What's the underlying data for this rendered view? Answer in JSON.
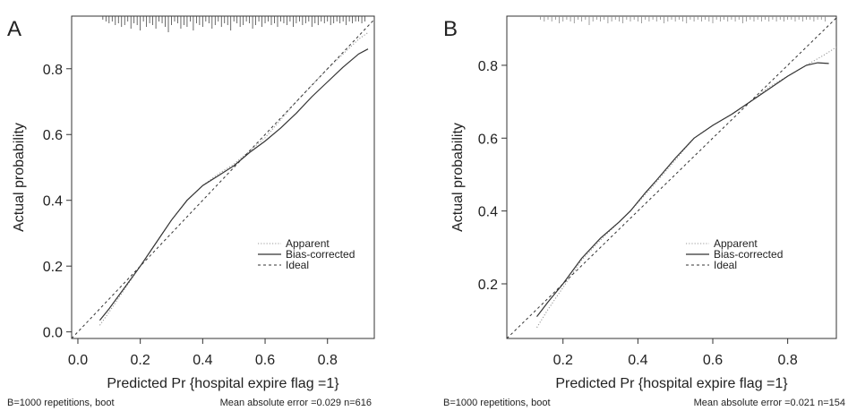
{
  "chart_data": [
    {
      "panel_label": "A",
      "type": "line",
      "xlabel": "Predicted Pr {hospital expire flag =1}",
      "ylabel": "Actual probability",
      "xlim": [
        -0.02,
        0.95
      ],
      "ylim": [
        -0.02,
        0.96
      ],
      "xticks": [
        "0.0",
        "0.2",
        "0.4",
        "0.6",
        "0.8"
      ],
      "xtick_values": [
        0,
        0.2,
        0.4,
        0.6,
        0.8
      ],
      "yticks": [
        "0.0",
        "0.2",
        "0.4",
        "0.6",
        "0.8"
      ],
      "ytick_values": [
        0,
        0.2,
        0.4,
        0.6,
        0.8
      ],
      "legend": [
        "Apparent",
        "Bias-corrected",
        "Ideal"
      ],
      "legend_placement": "bottom-right",
      "grid": false,
      "series": [
        {
          "name": "Apparent",
          "style": "dotted",
          "x": [
            0.07,
            0.1,
            0.15,
            0.2,
            0.25,
            0.3,
            0.35,
            0.4,
            0.45,
            0.5,
            0.55,
            0.6,
            0.65,
            0.7,
            0.75,
            0.8,
            0.85,
            0.9,
            0.93
          ],
          "y": [
            0.02,
            0.06,
            0.13,
            0.2,
            0.27,
            0.34,
            0.4,
            0.445,
            0.48,
            0.51,
            0.55,
            0.59,
            0.645,
            0.7,
            0.75,
            0.8,
            0.845,
            0.89,
            0.91
          ]
        },
        {
          "name": "Bias-corrected",
          "style": "solid",
          "x": [
            0.07,
            0.1,
            0.15,
            0.2,
            0.25,
            0.3,
            0.35,
            0.4,
            0.45,
            0.5,
            0.55,
            0.6,
            0.65,
            0.7,
            0.75,
            0.8,
            0.85,
            0.9,
            0.93
          ],
          "y": [
            0.035,
            0.07,
            0.135,
            0.2,
            0.27,
            0.34,
            0.4,
            0.445,
            0.475,
            0.505,
            0.545,
            0.58,
            0.62,
            0.665,
            0.715,
            0.76,
            0.805,
            0.845,
            0.86
          ]
        },
        {
          "name": "Ideal",
          "style": "dashed",
          "x": [
            -0.02,
            0.95
          ],
          "y": [
            -0.02,
            0.95
          ]
        }
      ],
      "rug_x": [
        0.08,
        0.09,
        0.1,
        0.11,
        0.12,
        0.13,
        0.14,
        0.15,
        0.16,
        0.17,
        0.18,
        0.19,
        0.2,
        0.21,
        0.22,
        0.23,
        0.24,
        0.25,
        0.26,
        0.27,
        0.28,
        0.29,
        0.3,
        0.31,
        0.32,
        0.33,
        0.34,
        0.35,
        0.36,
        0.37,
        0.38,
        0.39,
        0.4,
        0.41,
        0.42,
        0.43,
        0.44,
        0.45,
        0.46,
        0.47,
        0.48,
        0.49,
        0.5,
        0.51,
        0.52,
        0.53,
        0.54,
        0.55,
        0.56,
        0.57,
        0.58,
        0.59,
        0.6,
        0.61,
        0.62,
        0.63,
        0.64,
        0.65,
        0.66,
        0.67,
        0.68,
        0.69,
        0.7,
        0.71,
        0.72,
        0.73,
        0.74,
        0.75,
        0.76,
        0.77,
        0.78,
        0.79,
        0.8,
        0.81,
        0.82,
        0.83,
        0.84,
        0.85,
        0.86,
        0.87,
        0.88,
        0.89,
        0.9,
        0.91,
        0.92
      ],
      "rug_len": [
        2,
        3,
        4,
        3,
        5,
        4,
        6,
        5,
        3,
        7,
        4,
        5,
        8,
        3,
        6,
        4,
        5,
        7,
        3,
        4,
        6,
        9,
        5,
        3,
        4,
        7,
        5,
        6,
        3,
        8,
        4,
        5,
        6,
        3,
        4,
        7,
        5,
        3,
        6,
        4,
        5,
        8,
        3,
        4,
        6,
        5,
        3,
        4,
        7,
        5,
        3,
        6,
        4,
        3,
        5,
        4,
        6,
        3,
        4,
        5,
        3,
        6,
        4,
        3,
        5,
        4,
        3,
        6,
        4,
        5,
        3,
        4,
        3,
        5,
        4,
        3,
        4,
        3,
        5,
        3,
        4,
        3,
        3,
        4,
        3
      ],
      "footer_left": "B=1000 repetitions, boot",
      "footer_right": "Mean absolute error =0.029 n=616"
    },
    {
      "panel_label": "B",
      "type": "line",
      "xlabel": "Predicted Pr {hospital expire flag =1}",
      "ylabel": "Actual probability",
      "xlim": [
        0.05,
        0.93
      ],
      "ylim": [
        0.05,
        0.935
      ],
      "xticks": [
        "0.2",
        "0.4",
        "0.6",
        "0.8"
      ],
      "xtick_values": [
        0.2,
        0.4,
        0.6,
        0.8
      ],
      "yticks": [
        "0.2",
        "0.4",
        "0.6",
        "0.8"
      ],
      "ytick_values": [
        0.2,
        0.4,
        0.6,
        0.8
      ],
      "legend": [
        "Apparent",
        "Bias-corrected",
        "Ideal"
      ],
      "legend_placement": "bottom-right",
      "grid": false,
      "series": [
        {
          "name": "Apparent",
          "style": "dotted",
          "x": [
            0.13,
            0.16,
            0.2,
            0.25,
            0.3,
            0.35,
            0.38,
            0.42,
            0.45,
            0.5,
            0.55,
            0.6,
            0.65,
            0.7,
            0.75,
            0.8,
            0.85,
            0.9,
            0.93
          ],
          "y": [
            0.08,
            0.13,
            0.19,
            0.265,
            0.32,
            0.37,
            0.4,
            0.445,
            0.48,
            0.54,
            0.6,
            0.635,
            0.665,
            0.7,
            0.74,
            0.77,
            0.8,
            0.83,
            0.85
          ]
        },
        {
          "name": "Bias-corrected",
          "style": "solid",
          "x": [
            0.13,
            0.16,
            0.2,
            0.25,
            0.3,
            0.35,
            0.38,
            0.42,
            0.45,
            0.5,
            0.55,
            0.6,
            0.65,
            0.7,
            0.75,
            0.8,
            0.85,
            0.88,
            0.91
          ],
          "y": [
            0.11,
            0.15,
            0.2,
            0.27,
            0.325,
            0.37,
            0.4,
            0.45,
            0.485,
            0.545,
            0.6,
            0.635,
            0.665,
            0.7,
            0.735,
            0.77,
            0.8,
            0.807,
            0.805
          ]
        },
        {
          "name": "Ideal",
          "style": "dashed",
          "x": [
            0.05,
            0.93
          ],
          "y": [
            0.05,
            0.93
          ]
        }
      ],
      "rug_x": [
        0.14,
        0.15,
        0.16,
        0.17,
        0.18,
        0.19,
        0.2,
        0.21,
        0.22,
        0.23,
        0.24,
        0.25,
        0.26,
        0.27,
        0.28,
        0.29,
        0.3,
        0.31,
        0.32,
        0.33,
        0.34,
        0.35,
        0.36,
        0.37,
        0.38,
        0.39,
        0.4,
        0.41,
        0.42,
        0.43,
        0.44,
        0.45,
        0.46,
        0.47,
        0.48,
        0.49,
        0.5,
        0.51,
        0.52,
        0.53,
        0.54,
        0.55,
        0.56,
        0.57,
        0.58,
        0.59,
        0.6,
        0.61,
        0.62,
        0.63,
        0.64,
        0.65,
        0.66,
        0.67,
        0.68,
        0.69,
        0.7,
        0.71,
        0.72,
        0.73,
        0.74,
        0.75,
        0.76,
        0.77,
        0.78,
        0.79,
        0.8,
        0.81,
        0.82,
        0.83,
        0.84,
        0.85,
        0.86,
        0.87,
        0.88,
        0.89,
        0.9
      ],
      "rug_len": [
        2,
        3,
        2,
        3,
        2,
        4,
        3,
        2,
        3,
        4,
        2,
        3,
        2,
        5,
        3,
        2,
        3,
        2,
        4,
        3,
        2,
        3,
        4,
        2,
        3,
        2,
        3,
        4,
        2,
        3,
        2,
        3,
        2,
        4,
        3,
        2,
        3,
        2,
        3,
        4,
        2,
        3,
        2,
        3,
        2,
        3,
        4,
        2,
        3,
        2,
        3,
        2,
        3,
        2,
        4,
        3,
        2,
        3,
        2,
        3,
        2,
        3,
        2,
        3,
        2,
        3,
        2,
        2,
        3,
        2,
        3,
        2,
        2,
        3,
        2,
        2,
        3
      ],
      "footer_left": "B=1000 repetitions, boot",
      "footer_right": "Mean absolute error =0.021 n=154"
    }
  ]
}
